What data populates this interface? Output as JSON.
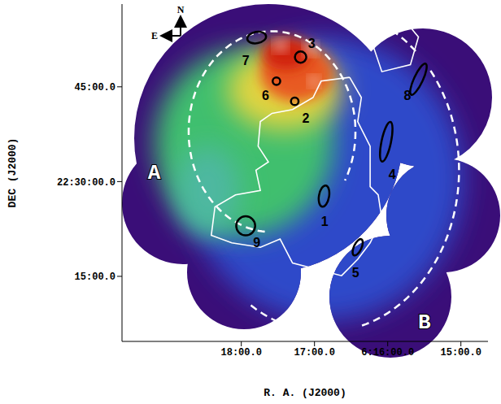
{
  "chart_data": {
    "type": "scatter",
    "xlabel": "R. A. (J2000)",
    "ylabel": "DEC (J2000)",
    "xlim": [
      19.63,
      14.63
    ],
    "ylim": [
      4.7,
      58.1
    ],
    "xticks": [
      {
        "value": 18,
        "label": "18:00.0"
      },
      {
        "value": 17,
        "label": "17:00.0"
      },
      {
        "value": 16,
        "label": "6:16:00.0"
      },
      {
        "value": 15,
        "label": "15:00.0"
      }
    ],
    "yticks": [
      {
        "value": 15,
        "label": "15:00.0"
      },
      {
        "value": 30,
        "label": "22:30:00.0"
      },
      {
        "value": 45,
        "label": "45:00.0"
      }
    ],
    "grid": false,
    "compass": {
      "north": "N",
      "east": "E"
    },
    "regions": [
      {
        "label": "1",
        "ra": 16.87,
        "dec": 27.7,
        "a": 1.7,
        "b": 0.8,
        "pa": 10,
        "label_ra": 16.86,
        "label_dec": 23.7
      },
      {
        "label": "2",
        "ra": 17.27,
        "dec": 42.7,
        "a": 0.6,
        "b": 0.6,
        "pa": 0,
        "label_ra": 17.12,
        "label_dec": 40.0
      },
      {
        "label": "3",
        "ra": 17.19,
        "dec": 49.7,
        "a": 0.9,
        "b": 0.9,
        "pa": 0,
        "label_ra": 17.04,
        "label_dec": 51.8
      },
      {
        "label": "4",
        "ra": 16.02,
        "dec": 36.3,
        "a": 3.2,
        "b": 0.75,
        "pa": 12,
        "label_ra": 15.94,
        "label_dec": 31.2
      },
      {
        "label": "5",
        "ra": 16.41,
        "dec": 19.6,
        "a": 1.4,
        "b": 0.6,
        "pa": 25,
        "label_ra": 16.44,
        "label_dec": 15.6
      },
      {
        "label": "6",
        "ra": 17.52,
        "dec": 45.9,
        "a": 0.6,
        "b": 0.6,
        "pa": 0,
        "label_ra": 17.67,
        "label_dec": 43.6
      },
      {
        "label": "7",
        "ra": 17.79,
        "dec": 52.8,
        "a": 1.5,
        "b": 0.9,
        "pa": 80,
        "label_ra": 17.94,
        "label_dec": 49.1
      },
      {
        "label": "8",
        "ra": 15.58,
        "dec": 46.2,
        "a": 2.7,
        "b": 0.7,
        "pa": 25,
        "label_ra": 15.73,
        "label_dec": 43.6
      },
      {
        "label": "9",
        "ra": 17.94,
        "dec": 23.0,
        "a": 1.5,
        "b": 1.5,
        "pa": 0,
        "label_ra": 17.79,
        "label_dec": 20.3
      }
    ],
    "circles": [
      {
        "label": "A",
        "ra": 17.58,
        "dec": 37.9,
        "radius": 15.9,
        "arcs": [
          [
            185,
            480
          ]
        ],
        "label_ra": 19.19,
        "label_dec": 31.4
      },
      {
        "label": "B",
        "ra": 16.86,
        "dec": 31.8,
        "radius": 25.6,
        "arcs": [
          [
            20,
            45
          ],
          [
            52,
            165
          ],
          [
            185,
            215
          ]
        ],
        "label_ra": 15.5,
        "label_dec": 7.7
      }
    ],
    "contours": [
      [
        [
          16.52,
          46.5
        ],
        [
          16.91,
          45.9
        ],
        [
          17.02,
          43.3
        ],
        [
          17.3,
          41.4
        ],
        [
          17.58,
          40.8
        ],
        [
          17.74,
          39.5
        ],
        [
          17.77,
          35.6
        ],
        [
          17.63,
          33.1
        ],
        [
          17.8,
          31.8
        ],
        [
          17.74,
          28.6
        ],
        [
          18.08,
          27.9
        ],
        [
          18.36,
          26.0
        ],
        [
          18.41,
          21.5
        ],
        [
          18.13,
          20.3
        ],
        [
          17.74,
          19.6
        ],
        [
          17.47,
          20.9
        ],
        [
          17.3,
          17.1
        ],
        [
          16.63,
          15.1
        ],
        [
          16.41,
          17.7
        ],
        [
          16.24,
          20.3
        ],
        [
          16.08,
          24.1
        ],
        [
          16.13,
          27.9
        ],
        [
          16.24,
          29.2
        ],
        [
          16.24,
          35.6
        ],
        [
          16.41,
          39.5
        ],
        [
          16.36,
          43.3
        ]
      ],
      [
        [
          16.24,
          52.9
        ],
        [
          15.74,
          55.1
        ],
        [
          15.58,
          52.9
        ],
        [
          15.69,
          48.5
        ],
        [
          16.08,
          47.4
        ]
      ]
    ]
  }
}
